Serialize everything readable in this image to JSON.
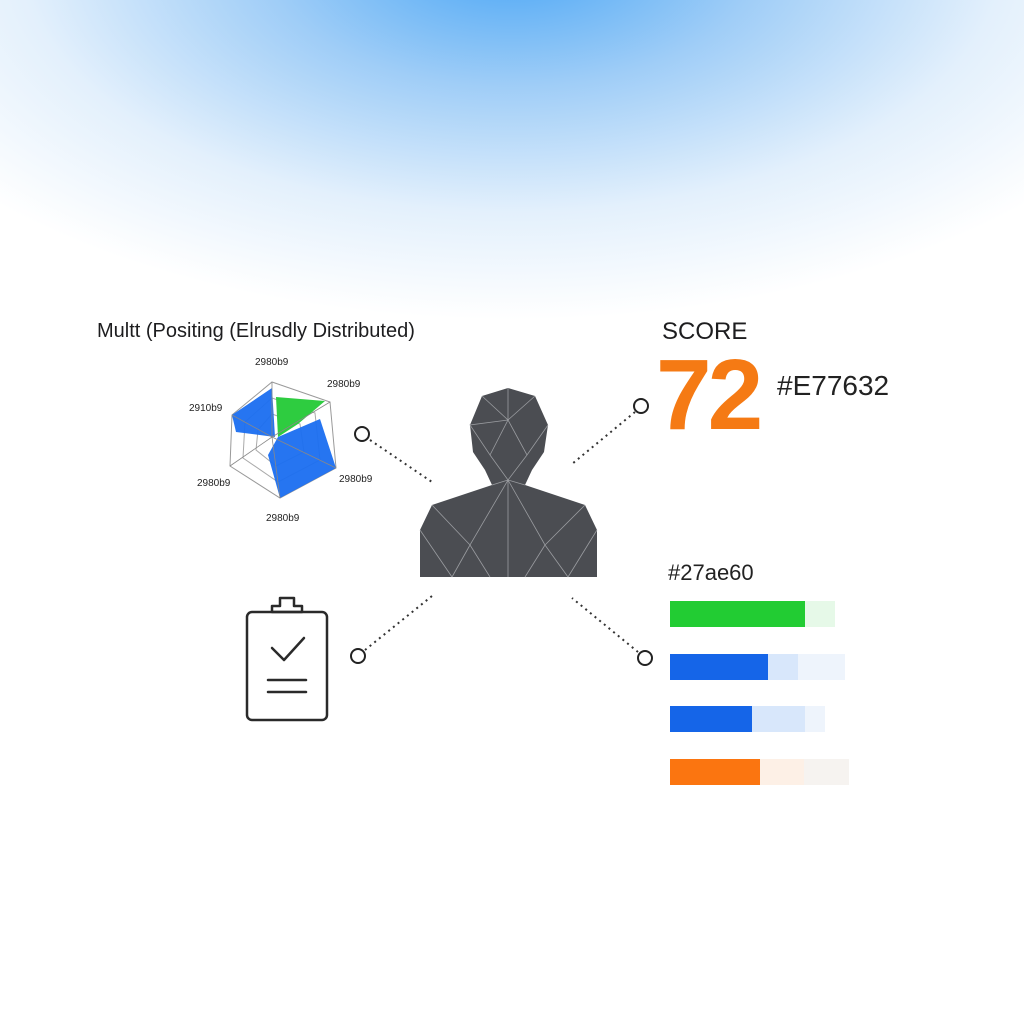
{
  "radar": {
    "title": "Multt (Positing (Elrusdly Distributed)",
    "axis_labels": [
      "2980b9",
      "2980b9",
      "2980b9",
      "2980b9",
      "2980b9",
      "2910b9"
    ],
    "colors": {
      "primary": "#1a6ef0",
      "secondary": "#2ecc40"
    }
  },
  "score": {
    "label": "SCORE",
    "value": "72",
    "color_text": "#E77632",
    "color": "#f57a14"
  },
  "bars": {
    "label": "#27ae60",
    "items": [
      {
        "color": "#22cc33",
        "light": "#e6f9e8",
        "lighter": "#e6f9e8",
        "fill": 0.82,
        "mid": 0.82
      },
      {
        "color": "#1565e8",
        "light": "#d8e7fb",
        "lighter": "#eef4fc",
        "fill": 0.56,
        "mid": 0.73
      },
      {
        "color": "#1565e8",
        "light": "#d8e7fb",
        "lighter": "#eef4fc",
        "fill": 0.53,
        "mid": 0.87
      },
      {
        "color": "#fb7510",
        "light": "#fdf0e6",
        "lighter": "#f6f3f0",
        "fill": 0.5,
        "mid": 0.75
      }
    ]
  },
  "icons": {
    "center": "person-icon",
    "bottom_left": "clipboard-check-icon"
  }
}
